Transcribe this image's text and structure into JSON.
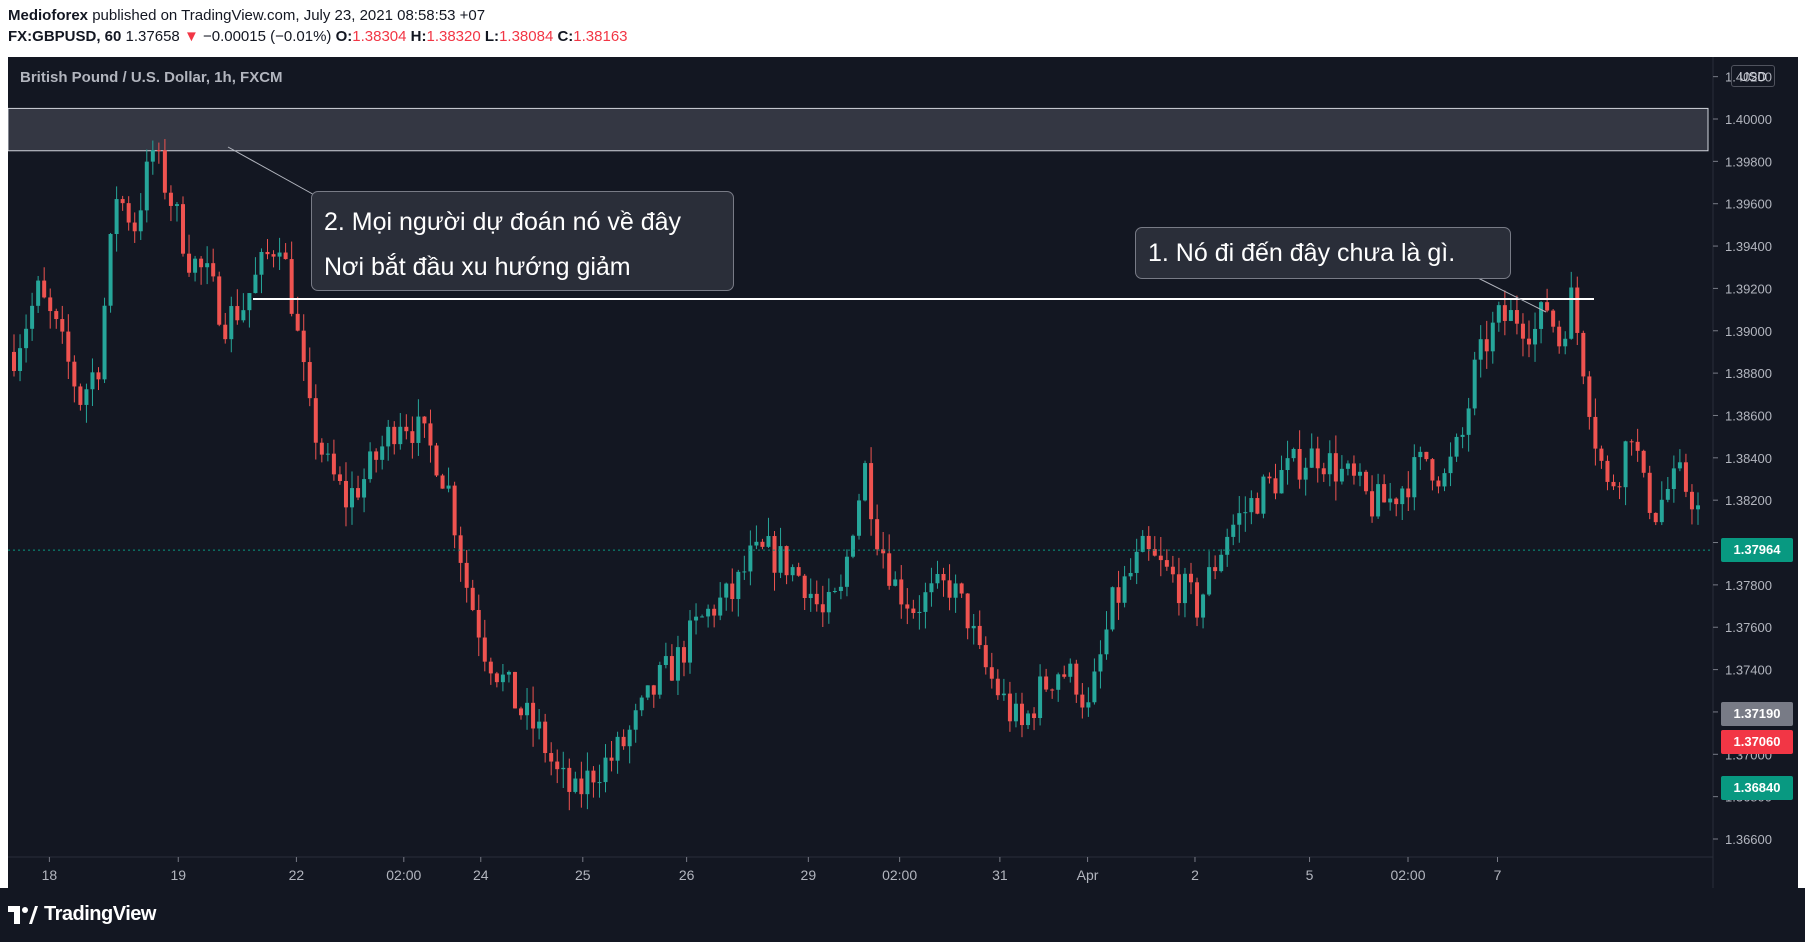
{
  "header": {
    "author": "Medioforex",
    "published_text": "published on TradingView.com, July 23, 2021 08:58:53 +07",
    "symbol": "FX:GBPUSD, 60",
    "last": "1.37658",
    "change_arrow": "▼",
    "change": "−0.00015 (−0.01%)",
    "o_label": "O:",
    "o_value": "1.38304",
    "h_label": "H:",
    "h_value": "1.38320",
    "l_label": "L:",
    "l_value": "1.38084",
    "c_label": "C:",
    "c_value": "1.38163"
  },
  "chart_title": "British Pound / U.S. Dollar, 1h, FXCM",
  "currency": "USD",
  "annotations": {
    "callout_2_line1": "2. Mọi người dự đoán nó về đây",
    "callout_2_line2": "Nơi bắt đầu xu hướng giảm",
    "callout_1": "1. Nó đi đến đây chưa là gì."
  },
  "price_tags": [
    {
      "value": "1.37964",
      "color": "#089981"
    },
    {
      "value": "1.37190",
      "color": "#787b86"
    },
    {
      "value": "1.37060",
      "color": "#f23645"
    },
    {
      "value": "1.36840",
      "color": "#089981"
    }
  ],
  "footer": {
    "brand": "TradingView"
  },
  "colors": {
    "up": "#26a69a",
    "down": "#ef5350",
    "background": "#131722",
    "zone": "#434651"
  },
  "chart_data": {
    "type": "candlestick",
    "title": "British Pound / U.S. Dollar, 1h, FXCM",
    "ylim": [
      1.365,
      1.403
    ],
    "y_ticks": [
      "1.36600",
      "1.36800",
      "1.37000",
      "1.37200",
      "1.37400",
      "1.37600",
      "1.37800",
      "1.38000",
      "1.38200",
      "1.38400",
      "1.38600",
      "1.38800",
      "1.39000",
      "1.39200",
      "1.39400",
      "1.39600",
      "1.39800",
      "1.40000",
      "1.40200"
    ],
    "x_ticks": [
      "18",
      "19",
      "22",
      "02:00",
      "24",
      "25",
      "26",
      "29",
      "02:00",
      "31",
      "Apr",
      "2",
      "5",
      "02:00",
      "7"
    ],
    "close_path": [
      [
        0,
        1.389
      ],
      [
        4,
        1.3918
      ],
      [
        7,
        1.39
      ],
      [
        11,
        1.3868
      ],
      [
        14,
        1.3885
      ],
      [
        17,
        1.3965
      ],
      [
        20,
        1.395
      ],
      [
        23,
        1.3985
      ],
      [
        26,
        1.3962
      ],
      [
        29,
        1.3935
      ],
      [
        32,
        1.3925
      ],
      [
        35,
        1.3905
      ],
      [
        38,
        1.3912
      ],
      [
        41,
        1.393
      ],
      [
        44,
        1.3945
      ],
      [
        46,
        1.3915
      ],
      [
        49,
        1.386
      ],
      [
        52,
        1.3835
      ],
      [
        55,
        1.382
      ],
      [
        58,
        1.383
      ],
      [
        61,
        1.3845
      ],
      [
        64,
        1.386
      ],
      [
        67,
        1.3852
      ],
      [
        70,
        1.384
      ],
      [
        72,
        1.3825
      ],
      [
        75,
        1.378
      ],
      [
        78,
        1.375
      ],
      [
        81,
        1.3735
      ],
      [
        84,
        1.372
      ],
      [
        87,
        1.371
      ],
      [
        90,
        1.369
      ],
      [
        93,
        1.368
      ],
      [
        96,
        1.3692
      ],
      [
        99,
        1.3698
      ],
      [
        101,
        1.3705
      ],
      [
        104,
        1.372
      ],
      [
        107,
        1.3735
      ],
      [
        110,
        1.3745
      ],
      [
        113,
        1.376
      ],
      [
        116,
        1.377
      ],
      [
        119,
        1.3775
      ],
      [
        122,
        1.3792
      ],
      [
        125,
        1.3795
      ],
      [
        128,
        1.379
      ],
      [
        131,
        1.3782
      ],
      [
        134,
        1.3765
      ],
      [
        137,
        1.3775
      ],
      [
        139,
        1.381
      ],
      [
        141,
        1.3835
      ],
      [
        143,
        1.3805
      ],
      [
        146,
        1.378
      ],
      [
        149,
        1.377
      ],
      [
        152,
        1.3775
      ],
      [
        155,
        1.378
      ],
      [
        158,
        1.3765
      ],
      [
        160,
        1.3745
      ],
      [
        162,
        1.3735
      ],
      [
        165,
        1.372
      ],
      [
        167,
        1.3712
      ],
      [
        170,
        1.373
      ],
      [
        173,
        1.374
      ],
      [
        176,
        1.3735
      ],
      [
        178,
        1.372
      ],
      [
        180,
        1.3745
      ],
      [
        182,
        1.377
      ],
      [
        185,
        1.3785
      ],
      [
        187,
        1.3795
      ],
      [
        190,
        1.3788
      ],
      [
        193,
        1.378
      ],
      [
        196,
        1.377
      ],
      [
        199,
        1.379
      ],
      [
        201,
        1.3805
      ],
      [
        204,
        1.3815
      ],
      [
        207,
        1.3825
      ],
      [
        210,
        1.3832
      ],
      [
        213,
        1.3838
      ],
      [
        216,
        1.3842
      ],
      [
        219,
        1.3835
      ],
      [
        222,
        1.3828
      ],
      [
        225,
        1.3818
      ],
      [
        228,
        1.382
      ],
      [
        231,
        1.383
      ],
      [
        234,
        1.384
      ],
      [
        237,
        1.383
      ],
      [
        240,
        1.385
      ],
      [
        242,
        1.388
      ],
      [
        244,
        1.3895
      ],
      [
        246,
        1.3905
      ],
      [
        249,
        1.3907
      ],
      [
        252,
        1.39
      ],
      [
        254,
        1.3912
      ],
      [
        256,
        1.3895
      ],
      [
        258,
        1.3915
      ],
      [
        260,
        1.3885
      ],
      [
        262,
        1.385
      ],
      [
        264,
        1.3825
      ],
      [
        266,
        1.3835
      ],
      [
        268,
        1.3855
      ],
      [
        270,
        1.3825
      ],
      [
        272,
        1.3815
      ],
      [
        274,
        1.3825
      ],
      [
        276,
        1.383
      ],
      [
        278,
        1.3822
      ],
      [
        279,
        1.3815
      ]
    ],
    "levels": [
      {
        "type": "zone",
        "from": 1.3985,
        "to": 1.4005
      },
      {
        "type": "horizontal_line",
        "value": 1.3915
      }
    ],
    "current_price_line": 1.37964
  }
}
